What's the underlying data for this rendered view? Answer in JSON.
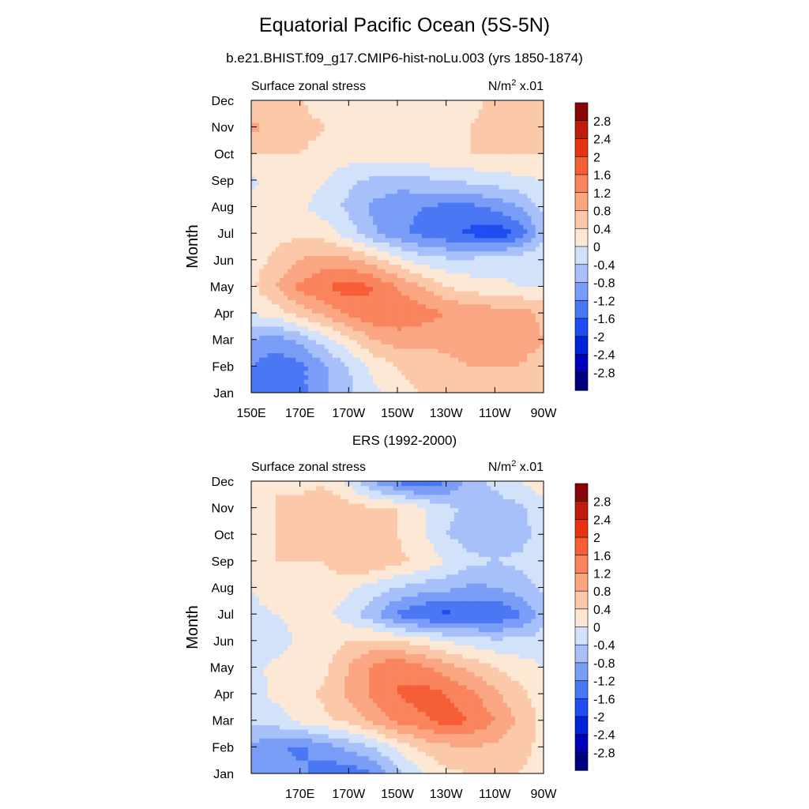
{
  "figure": {
    "title": "Equatorial Pacific Ocean (5S-5N)",
    "model_label": "b.e21.BHIST.f09_g17.CMIP6-hist-noLu.003 (yrs 1850-1874)",
    "obs_label": "ERS (1992-2000)"
  },
  "chart_data": [
    {
      "type": "heatmap",
      "left_label": "Surface zonal stress",
      "units_text": "N/m",
      "units_sup": "2",
      "units_scale": " x.01",
      "ylabel": "Month",
      "xlim": [
        150,
        270
      ],
      "x_ticks": [
        {
          "value": 150,
          "label": "150E"
        },
        {
          "value": 170,
          "label": "170E"
        },
        {
          "value": 190,
          "label": "170W"
        },
        {
          "value": 210,
          "label": "150W"
        },
        {
          "value": 230,
          "label": "130W"
        },
        {
          "value": 250,
          "label": "110W"
        },
        {
          "value": 270,
          "label": "90W"
        }
      ],
      "months": [
        "Jan",
        "Feb",
        "Mar",
        "Apr",
        "May",
        "Jun",
        "Jul",
        "Aug",
        "Sep",
        "Oct",
        "Nov",
        "Dec"
      ],
      "x": [
        150,
        160,
        170,
        180,
        190,
        200,
        210,
        220,
        230,
        240,
        250,
        260,
        270
      ],
      "values": [
        [
          -1.4,
          -1.6,
          -1.3,
          -0.9,
          -0.5,
          -0.1,
          0.2,
          0.4,
          0.5,
          0.5,
          0.6,
          0.6,
          0.5
        ],
        [
          -1.2,
          -1.5,
          -1.3,
          -0.9,
          -0.4,
          0.1,
          0.4,
          0.6,
          0.7,
          0.8,
          0.8,
          0.8,
          0.6
        ],
        [
          -0.8,
          -1.0,
          -0.7,
          -0.2,
          0.3,
          0.8,
          1.0,
          0.9,
          0.9,
          1.0,
          1.0,
          1.0,
          0.8
        ],
        [
          0.0,
          0.2,
          0.6,
          0.9,
          1.3,
          1.5,
          1.5,
          1.4,
          1.2,
          1.1,
          1.0,
          1.0,
          0.7
        ],
        [
          0.3,
          0.8,
          1.3,
          1.6,
          1.8,
          1.6,
          1.2,
          0.8,
          0.4,
          0.2,
          0.1,
          0.0,
          0.0
        ],
        [
          0.2,
          0.5,
          0.8,
          1.0,
          0.9,
          0.6,
          0.2,
          -0.2,
          -0.3,
          -0.3,
          -0.2,
          -0.1,
          0.0
        ],
        [
          0.2,
          0.3,
          0.3,
          0.2,
          -0.2,
          -0.7,
          -1.1,
          -1.3,
          -1.5,
          -1.7,
          -1.9,
          -1.5,
          -0.6
        ],
        [
          0.1,
          0.2,
          0.1,
          -0.2,
          -0.5,
          -0.9,
          -1.1,
          -1.2,
          -1.3,
          -1.3,
          -1.1,
          -0.8,
          -0.3
        ],
        [
          -0.1,
          0.2,
          0.2,
          0.0,
          -0.3,
          -0.5,
          -0.6,
          -0.5,
          -0.4,
          -0.3,
          -0.2,
          -0.1,
          0.0
        ],
        [
          0.4,
          0.4,
          0.4,
          0.3,
          0.2,
          0.2,
          0.3,
          0.3,
          0.4,
          0.4,
          0.4,
          0.4,
          0.4
        ],
        [
          0.9,
          0.7,
          0.5,
          0.4,
          0.4,
          0.4,
          0.3,
          0.2,
          0.2,
          0.4,
          0.5,
          0.6,
          0.6
        ],
        [
          0.5,
          0.4,
          0.4,
          0.3,
          0.3,
          0.2,
          0.1,
          0.0,
          0.0,
          0.3,
          0.5,
          0.6,
          0.6
        ]
      ],
      "colorbar": {
        "levels": [
          "2.8",
          "2.4",
          "2",
          "1.6",
          "1.2",
          "0.8",
          "0.4",
          "0",
          "-0.4",
          "-0.8",
          "-1.2",
          "-1.6",
          "-2",
          "-2.4",
          "-2.8"
        ],
        "thresholds": [
          -2.8,
          -2.4,
          -2,
          -1.6,
          -1.2,
          -0.8,
          -0.4,
          0,
          0.4,
          0.8,
          1.2,
          1.6,
          2,
          2.4,
          2.8
        ],
        "colors": [
          "#00007f",
          "#0000b5",
          "#0022d9",
          "#1e4ef2",
          "#4a78f5",
          "#7a9df7",
          "#a8c0fa",
          "#d2e2fb",
          "#fde8d6",
          "#fcc8aa",
          "#fba682",
          "#f9845d",
          "#f55e36",
          "#e63412",
          "#be1d0c",
          "#8a0606"
        ]
      }
    },
    {
      "type": "heatmap",
      "left_label": "Surface zonal stress",
      "units_text": "N/m",
      "units_sup": "2",
      "units_scale": " x.01",
      "ylabel": "Month",
      "xlim": [
        150,
        270
      ],
      "x_ticks": [
        {
          "value": 150,
          "label": ""
        },
        {
          "value": 170,
          "label": "170E"
        },
        {
          "value": 190,
          "label": "170W"
        },
        {
          "value": 210,
          "label": "150W"
        },
        {
          "value": 230,
          "label": "130W"
        },
        {
          "value": 250,
          "label": "110W"
        },
        {
          "value": 270,
          "label": "90W"
        }
      ],
      "months": [
        "Jan",
        "Feb",
        "Mar",
        "Apr",
        "May",
        "Jun",
        "Jul",
        "Aug",
        "Sep",
        "Oct",
        "Nov",
        "Dec"
      ],
      "x": [
        150,
        160,
        170,
        180,
        190,
        200,
        210,
        220,
        230,
        240,
        250,
        260,
        270
      ],
      "values": [
        [
          -0.8,
          -1.0,
          -1.1,
          -1.4,
          -1.5,
          -1.2,
          -0.6,
          0.0,
          0.3,
          0.4,
          0.5,
          0.4,
          0.3
        ],
        [
          -0.9,
          -1.1,
          -1.3,
          -1.0,
          -0.7,
          -0.4,
          0.1,
          0.5,
          0.7,
          0.8,
          0.7,
          0.5,
          0.3
        ],
        [
          -0.3,
          -0.2,
          0.1,
          0.3,
          0.5,
          0.9,
          1.3,
          1.5,
          1.8,
          1.6,
          1.2,
          0.7,
          0.3
        ],
        [
          -0.2,
          0.1,
          0.2,
          0.5,
          0.9,
          1.3,
          1.6,
          1.8,
          1.6,
          1.3,
          0.9,
          0.5,
          0.2
        ],
        [
          -0.1,
          0.1,
          0.2,
          0.3,
          0.8,
          1.3,
          1.6,
          1.3,
          1.0,
          0.7,
          0.4,
          0.2,
          0.0
        ],
        [
          -0.4,
          -0.2,
          0.1,
          0.2,
          0.4,
          0.5,
          0.4,
          0.2,
          0.0,
          -0.2,
          -0.3,
          -0.3,
          -0.2
        ],
        [
          -0.1,
          0.0,
          0.1,
          0.1,
          -0.2,
          -0.7,
          -1.3,
          -1.6,
          -1.7,
          -1.6,
          -1.6,
          -1.3,
          -0.6
        ],
        [
          0.0,
          0.2,
          0.3,
          0.3,
          0.1,
          -0.2,
          -0.4,
          -0.6,
          -0.7,
          -0.9,
          -0.8,
          -0.6,
          -0.3
        ],
        [
          0.3,
          0.4,
          0.4,
          0.4,
          0.7,
          0.8,
          0.5,
          0.3,
          0.0,
          -0.3,
          -0.4,
          -0.3,
          -0.1
        ],
        [
          0.3,
          0.4,
          0.5,
          0.4,
          0.7,
          0.5,
          0.4,
          0.1,
          -0.4,
          -0.6,
          -0.7,
          -0.6,
          -0.2
        ],
        [
          0.3,
          0.4,
          0.5,
          0.8,
          0.6,
          0.4,
          0.4,
          0.1,
          -0.3,
          -0.5,
          -0.6,
          -0.5,
          -0.1
        ],
        [
          0.3,
          0.4,
          0.3,
          0.3,
          -0.1,
          -0.8,
          -1.3,
          -1.6,
          -1.2,
          -0.6,
          -0.3,
          0.0,
          0.2
        ]
      ],
      "colorbar": {
        "levels": [
          "2.8",
          "2.4",
          "2",
          "1.6",
          "1.2",
          "0.8",
          "0.4",
          "0",
          "-0.4",
          "-0.8",
          "-1.2",
          "-1.6",
          "-2",
          "-2.4",
          "-2.8"
        ],
        "thresholds": [
          -2.8,
          -2.4,
          -2,
          -1.6,
          -1.2,
          -0.8,
          -0.4,
          0,
          0.4,
          0.8,
          1.2,
          1.6,
          2,
          2.4,
          2.8
        ],
        "colors": [
          "#00007f",
          "#0000b5",
          "#0022d9",
          "#1e4ef2",
          "#4a78f5",
          "#7a9df7",
          "#a8c0fa",
          "#d2e2fb",
          "#fde8d6",
          "#fcc8aa",
          "#fba682",
          "#f9845d",
          "#f55e36",
          "#e63412",
          "#be1d0c",
          "#8a0606"
        ]
      }
    }
  ]
}
